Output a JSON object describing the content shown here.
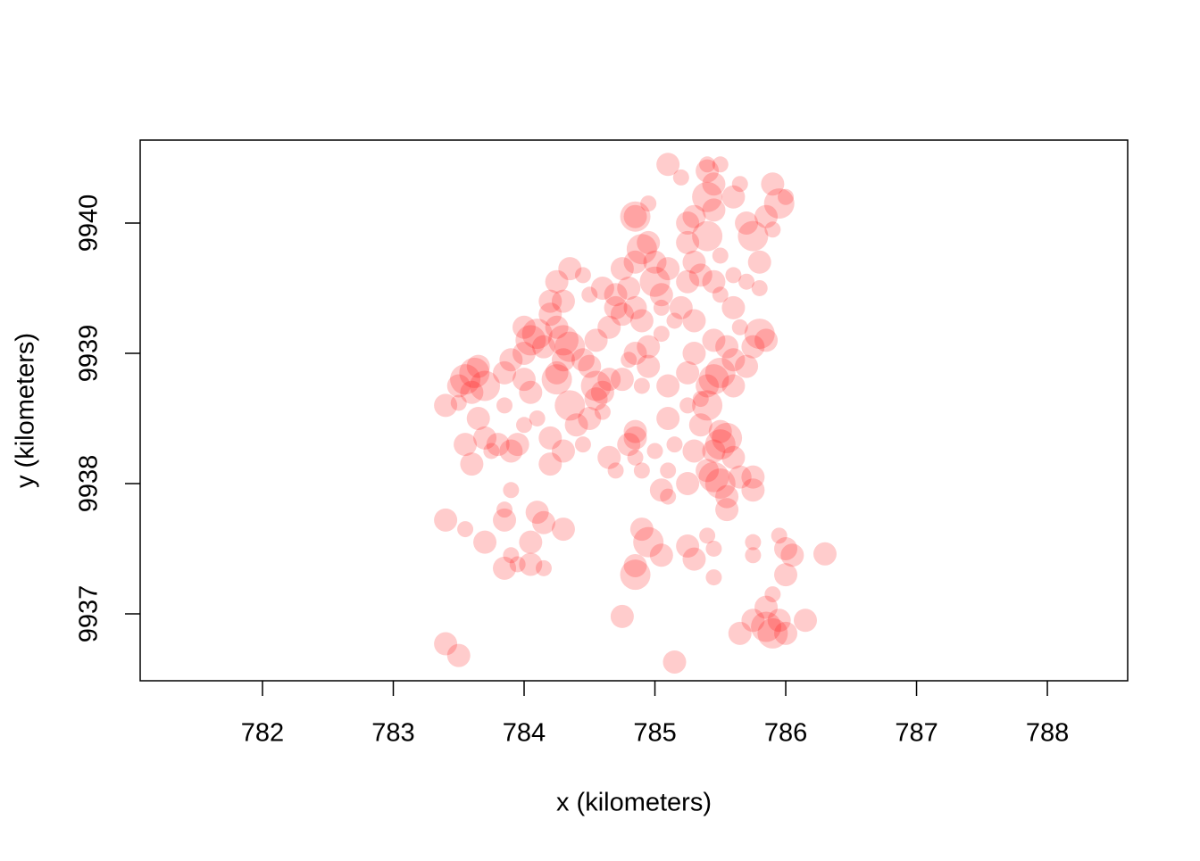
{
  "chart_data": {
    "type": "scatter",
    "xlabel": "x (kilometers)",
    "ylabel": "y (kilometers)",
    "color": "#ff0000",
    "opacity": 0.2,
    "xlim": [
      781.065,
      788.614
    ],
    "ylim": [
      9936.486,
      9940.637
    ],
    "xticks": [
      782,
      783,
      784,
      785,
      786,
      787,
      788
    ],
    "yticks": [
      9937,
      9938,
      9939,
      9940
    ],
    "x": [
      783.55,
      783.62,
      783.7,
      783.6,
      783.5,
      783.65,
      783.4,
      783.5,
      783.65,
      783.7,
      783.8,
      783.55,
      783.6,
      783.75,
      783.95,
      783.9,
      784.2,
      784.1,
      784.2,
      784.0,
      784.05,
      784.1,
      784.15,
      784.0,
      783.9,
      783.85,
      784.25,
      784.05,
      783.85,
      784.0,
      784.3,
      784.35,
      784.25,
      784.3,
      784.45,
      784.35,
      784.4,
      784.3,
      784.45,
      784.5,
      784.55,
      784.6,
      784.65,
      784.5,
      784.55,
      784.6,
      784.75,
      784.8,
      784.9,
      784.95,
      784.55,
      784.65,
      784.75,
      784.85,
      784.7,
      784.6,
      784.8,
      784.9,
      784.95,
      784.85,
      784.85,
      784.85,
      784.9,
      784.95,
      784.85,
      785.0,
      785.05,
      785.0,
      784.75,
      784.7,
      784.35,
      784.25,
      784.2,
      784.45,
      784.5,
      784.3,
      784.0,
      784.2,
      784.95,
      785.05,
      785.4,
      785.4,
      785.45,
      785.4,
      785.45,
      785.3,
      785.25,
      785.3,
      785.25,
      785.35,
      785.1,
      785.2,
      785.4,
      785.5,
      785.65,
      785.6,
      785.7,
      785.75,
      785.8,
      785.85,
      785.9,
      785.95,
      786.0,
      785.9,
      785.6,
      785.7,
      785.8,
      785.6,
      785.5,
      785.45,
      785.3,
      785.15,
      785.3,
      785.25,
      785.45,
      785.55,
      785.65,
      785.75,
      785.8,
      785.85,
      785.45,
      785.5,
      785.6,
      785.4,
      785.7,
      785.6,
      785.4,
      785.35,
      785.25,
      785.5,
      785.5,
      785.55,
      785.45,
      785.6,
      785.45,
      785.5,
      785.4,
      785.65,
      785.55,
      785.55,
      785.75,
      785.75,
      785.25,
      785.3,
      785.15,
      785.05,
      785.1,
      785.1,
      785.1,
      785.0,
      784.85,
      784.85,
      784.8,
      784.65,
      784.7,
      784.85,
      784.9,
      784.25,
      783.9,
      783.85,
      783.4,
      783.55,
      783.7,
      783.85,
      784.1,
      784.15,
      784.3,
      784.05,
      783.9,
      783.85,
      783.95,
      784.05,
      784.15,
      784.9,
      784.95,
      784.85,
      784.85,
      785.05,
      785.25,
      785.3,
      785.4,
      785.45,
      785.45,
      785.75,
      785.75,
      785.95,
      786.0,
      786.05,
      786.3,
      786.0,
      785.9,
      785.85,
      785.9,
      785.85,
      786.0,
      785.95,
      785.75,
      785.65,
      786.15,
      784.75,
      783.4,
      783.5,
      785.15,
      785.1,
      785.05,
      785.2,
      785.1,
      785.25,
      785.5,
      785.35
    ],
    "y": [
      9938.8,
      9938.85,
      9938.75,
      9938.7,
      9938.75,
      9938.9,
      9938.6,
      9938.62,
      9938.5,
      9938.35,
      9938.3,
      9938.3,
      9938.15,
      9938.25,
      9938.3,
      9938.25,
      9938.35,
      9938.5,
      9938.15,
      9938.45,
      9939.1,
      9939.15,
      9939.05,
      9939.0,
      9938.95,
      9938.85,
      9938.85,
      9938.7,
      9938.6,
      9938.8,
      9939.1,
      9939.05,
      9939.2,
      9938.95,
      9938.95,
      9938.6,
      9938.45,
      9938.25,
      9938.3,
      9938.5,
      9938.75,
      9938.7,
      9938.8,
      9938.9,
      9938.65,
      9938.55,
      9938.8,
      9938.95,
      9938.75,
      9938.9,
      9939.1,
      9939.2,
      9939.3,
      9939.35,
      9939.45,
      9939.5,
      9939.5,
      9939.25,
      9939.05,
      9939.0,
      9940.05,
      9940.05,
      9939.8,
      9939.85,
      9939.7,
      9939.55,
      9939.45,
      9939.7,
      9939.65,
      9939.35,
      9939.65,
      9939.55,
      9939.4,
      9939.6,
      9939.45,
      9939.4,
      9939.2,
      9939.3,
      9940.15,
      9939.35,
      9939.9,
      9940.2,
      9940.3,
      9940.4,
      9940.1,
      9940.05,
      9939.85,
      9939.7,
      9939.55,
      9939.6,
      9940.45,
      9940.35,
      9940.45,
      9940.45,
      9940.3,
      9940.2,
      9940.0,
      9939.9,
      9939.7,
      9940.05,
      9940.3,
      9940.15,
      9940.2,
      9939.95,
      9939.6,
      9939.55,
      9939.5,
      9939.35,
      9939.45,
      9939.55,
      9939.25,
      9939.25,
      9939.0,
      9938.85,
      9939.1,
      9939.05,
      9939.2,
      9939.05,
      9939.15,
      9939.1,
      9938.8,
      9938.85,
      9938.75,
      9938.75,
      9938.9,
      9938.95,
      9938.6,
      9938.45,
      9938.6,
      9938.4,
      9938.3,
      9938.35,
      9938.25,
      9938.2,
      9938.05,
      9938.0,
      9938.1,
      9938.05,
      9937.9,
      9937.8,
      9938.05,
      9937.95,
      9938.0,
      9938.25,
      9938.3,
      9937.95,
      9937.9,
      9938.1,
      9938.5,
      9938.25,
      9938.4,
      9938.35,
      9938.3,
      9938.2,
      9938.1,
      9938.2,
      9938.1,
      9938.8,
      9937.95,
      9937.8,
      9937.72,
      9937.65,
      9937.55,
      9937.72,
      9937.78,
      9937.7,
      9937.65,
      9937.55,
      9937.45,
      9937.35,
      9937.38,
      9937.38,
      9937.35,
      9937.65,
      9937.55,
      9937.37,
      9937.3,
      9937.45,
      9937.52,
      9937.42,
      9937.6,
      9937.5,
      9937.28,
      9937.55,
      9937.45,
      9937.6,
      9937.5,
      9937.45,
      9937.46,
      9937.3,
      9937.15,
      9937.05,
      9936.85,
      9936.9,
      9936.85,
      9936.95,
      9936.95,
      9936.85,
      9936.95,
      9936.98,
      9936.77,
      9936.68,
      9936.63,
      9938.75,
      9939.15,
      9939.35,
      9939.65,
      9940.0,
      9939.75,
      9938.65
    ],
    "sizes": [
      3,
      3,
      3,
      2,
      2,
      2,
      2,
      1,
      2,
      2,
      2,
      2,
      2,
      1,
      2,
      2,
      2,
      1,
      2,
      1,
      3,
      3,
      2,
      2,
      2,
      2,
      2,
      2,
      1,
      2,
      3,
      3,
      2,
      2,
      2,
      3,
      2,
      2,
      1,
      2,
      3,
      2,
      2,
      2,
      2,
      1,
      2,
      1,
      1,
      2,
      2,
      2,
      2,
      2,
      2,
      2,
      2,
      2,
      2,
      2,
      3,
      2,
      3,
      2,
      2,
      3,
      2,
      2,
      2,
      2,
      2,
      2,
      2,
      1,
      1,
      2,
      2,
      2,
      1,
      1,
      3,
      3,
      2,
      2,
      2,
      2,
      2,
      2,
      2,
      2,
      2,
      1,
      1,
      1,
      1,
      2,
      2,
      3,
      2,
      2,
      2,
      3,
      1,
      1,
      1,
      1,
      1,
      2,
      1,
      2,
      2,
      1,
      2,
      2,
      2,
      2,
      1,
      2,
      3,
      2,
      3,
      3,
      2,
      2,
      2,
      2,
      3,
      2,
      1,
      2,
      3,
      3,
      2,
      2,
      3,
      3,
      2,
      2,
      2,
      2,
      2,
      2,
      2,
      2,
      1,
      2,
      1,
      1,
      2,
      1,
      2,
      2,
      2,
      2,
      1,
      1,
      1,
      3,
      1,
      1,
      2,
      1,
      2,
      2,
      2,
      2,
      2,
      2,
      1,
      2,
      1,
      2,
      1,
      2,
      3,
      2,
      3,
      2,
      2,
      2,
      1,
      1,
      1,
      1,
      1,
      1,
      2,
      2,
      2,
      2,
      1,
      2,
      3,
      3,
      2,
      2,
      2,
      2,
      2,
      2,
      2,
      2,
      2,
      2,
      1,
      2,
      2,
      2,
      1,
      1
    ]
  }
}
